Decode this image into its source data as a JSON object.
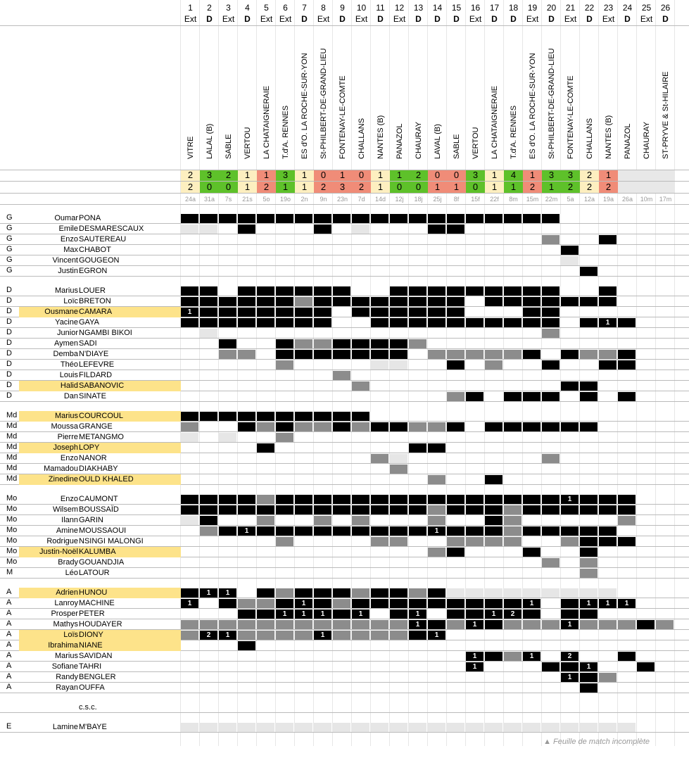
{
  "matches": [
    {
      "n": "1",
      "type": "Ext",
      "opp": "VITRE",
      "s1": "2",
      "s2": "2",
      "c1": "y",
      "c2": "y",
      "date": "24a"
    },
    {
      "n": "2",
      "type": "D",
      "opp": "LALAL (B)",
      "s1": "3",
      "s2": "0",
      "c1": "g",
      "c2": "g",
      "date": "31a"
    },
    {
      "n": "3",
      "type": "Ext",
      "opp": "SABLE",
      "s1": "2",
      "s2": "0",
      "c1": "g",
      "c2": "g",
      "date": "7s"
    },
    {
      "n": "4",
      "type": "D",
      "opp": "VERTOU",
      "s1": "1",
      "s2": "1",
      "c1": "y",
      "c2": "y",
      "date": "21s"
    },
    {
      "n": "5",
      "type": "Ext",
      "opp": "LA CHATAIGNERAIE",
      "s1": "1",
      "s2": "2",
      "c1": "r",
      "c2": "r",
      "date": "5o"
    },
    {
      "n": "6",
      "type": "Ext",
      "opp": "T.d'A. RENNES",
      "s1": "3",
      "s2": "1",
      "c1": "g",
      "c2": "g",
      "date": "19o"
    },
    {
      "n": "7",
      "type": "D",
      "opp": "ES d'O. LA ROCHE-SUR-YON",
      "s1": "1",
      "s2": "1",
      "c1": "y",
      "c2": "y",
      "date": "2n"
    },
    {
      "n": "8",
      "type": "Ext",
      "opp": "St-PHILBERT-DE-GRAND-LIEU",
      "s1": "0",
      "s2": "2",
      "c1": "r",
      "c2": "r",
      "date": "9n"
    },
    {
      "n": "9",
      "type": "D",
      "opp": "FONTENAY-LE-COMTE",
      "s1": "1",
      "s2": "3",
      "c1": "r",
      "c2": "r",
      "date": "23n"
    },
    {
      "n": "10",
      "type": "Ext",
      "opp": "CHALLANS",
      "s1": "0",
      "s2": "2",
      "c1": "r",
      "c2": "r",
      "date": "7d"
    },
    {
      "n": "11",
      "type": "D",
      "opp": "NANTES (B)",
      "s1": "1",
      "s2": "1",
      "c1": "y",
      "c2": "y",
      "date": "14d"
    },
    {
      "n": "12",
      "type": "Ext",
      "opp": "PANAZOL",
      "s1": "1",
      "s2": "0",
      "c1": "g",
      "c2": "g",
      "date": "12j"
    },
    {
      "n": "13",
      "type": "D",
      "opp": "CHAURAY",
      "s1": "2",
      "s2": "0",
      "c1": "g",
      "c2": "g",
      "date": "18j"
    },
    {
      "n": "14",
      "type": "D",
      "opp": "LAVAL (B)",
      "s1": "0",
      "s2": "1",
      "c1": "r",
      "c2": "r",
      "date": "25j"
    },
    {
      "n": "15",
      "type": "D",
      "opp": "SABLE",
      "s1": "0",
      "s2": "1",
      "c1": "r",
      "c2": "r",
      "date": "8f"
    },
    {
      "n": "16",
      "type": "Ext",
      "opp": "VERTOU",
      "s1": "3",
      "s2": "0",
      "c1": "g",
      "c2": "g",
      "date": "15f"
    },
    {
      "n": "17",
      "type": "D",
      "opp": "LA CHATAIGNERAIE",
      "s1": "1",
      "s2": "1",
      "c1": "y",
      "c2": "y",
      "date": "22f"
    },
    {
      "n": "18",
      "type": "D",
      "opp": "T.d'A. RENNES",
      "s1": "4",
      "s2": "1",
      "c1": "g",
      "c2": "g",
      "date": "8m"
    },
    {
      "n": "19",
      "type": "Ext",
      "opp": "ES d'O. LA ROCHE-SUR-YON",
      "s1": "1",
      "s2": "2",
      "c1": "r",
      "c2": "r",
      "date": "15m"
    },
    {
      "n": "20",
      "type": "D",
      "opp": "St-PHILBERT-DE-GRAND-LIEU",
      "s1": "3",
      "s2": "1",
      "c1": "g",
      "c2": "g",
      "date": "22m"
    },
    {
      "n": "21",
      "type": "Ext",
      "opp": "FONTENAY-LE-COMTE",
      "s1": "3",
      "s2": "2",
      "c1": "g",
      "c2": "g",
      "date": "5a"
    },
    {
      "n": "22",
      "type": "D",
      "opp": "CHALLANS",
      "s1": "2",
      "s2": "2",
      "c1": "y",
      "c2": "y",
      "date": "12a"
    },
    {
      "n": "23",
      "type": "Ext",
      "opp": "NANTES (B)",
      "s1": "1",
      "s2": "2",
      "c1": "r",
      "c2": "r",
      "date": "19a"
    },
    {
      "n": "24",
      "type": "D",
      "opp": "PANAZOL",
      "s1": "",
      "s2": "",
      "c1": "e",
      "c2": "e",
      "date": "26a"
    },
    {
      "n": "25",
      "type": "Ext",
      "opp": "CHAURAY",
      "s1": "",
      "s2": "",
      "c1": "e",
      "c2": "e",
      "date": "10m"
    },
    {
      "n": "26",
      "type": "D",
      "opp": "ST-PRYVE & St-HILAIRE",
      "s1": "",
      "s2": "",
      "c1": "e",
      "c2": "e",
      "date": "17m"
    }
  ],
  "colors": {
    "y": "#fdefc0",
    "g": "#5ec12a",
    "r": "#f08c78",
    "e": "#e8e8e8",
    "black": "#000000",
    "gray": "#8c8c8c",
    "light": "#e6e6e6",
    "highlight": "#fde38a"
  },
  "players": [
    {
      "pos": "G",
      "first": "Oumar",
      "last": "PONA",
      "hl": false,
      "row": "kkkkkkkkkkkkkkkkkkkk..."
    },
    {
      "pos": "G",
      "first": "Emile",
      "last": "DESMARESCAUX",
      "hl": false,
      "row": "ll.k...k.l...kk........."
    },
    {
      "pos": "G",
      "first": "Enzo",
      "last": "SAUTEREAU",
      "hl": false,
      "row": "...................g..k."
    },
    {
      "pos": "G",
      "first": "Max",
      "last": "CHABOT",
      "hl": false,
      "row": "....................k..."
    },
    {
      "pos": "G",
      "first": "Vincent",
      "last": "GOUGEON",
      "hl": false,
      "row": "....................l..."
    },
    {
      "pos": "G",
      "first": "Justin",
      "last": "EGRON",
      "hl": false,
      "row": ".....................k.."
    },
    {
      "gap": true
    },
    {
      "pos": "D",
      "first": "Marius",
      "last": "LOUER",
      "hl": false,
      "row": "kk.kkkkkk..kkkkkkkkk..k."
    },
    {
      "pos": "D",
      "first": "Loïc",
      "last": "BRETON",
      "hl": false,
      "row": "kkkkkkgkkkkkkkk.kkkkkkk."
    },
    {
      "pos": "D",
      "first": "Ousmane",
      "last": "CAMARA",
      "hl": true,
      "row": "1kkkkkkk.kkkkkk...kk...."
    },
    {
      "pos": "D",
      "first": "Yacine",
      "last": "GAYA",
      "hl": false,
      "row": "kkkkkkkk..kkkkkkkkkk.k1k."
    },
    {
      "pos": "D",
      "first": "Junior",
      "last": "NGAMBI BIKOI",
      "hl": false,
      "row": ".l.................g...."
    },
    {
      "pos": "D",
      "first": "Aymen",
      "last": "SADI",
      "hl": false,
      "row": "..k..kggkkkkg..........."
    },
    {
      "pos": "D",
      "first": "Demba",
      "last": "N'DIAYE",
      "hl": false,
      "row": "..gg.kkkkkkk.gggggk.kggk."
    },
    {
      "pos": "D",
      "first": "Théo",
      "last": "LEFEVRE",
      "hl": false,
      "row": ".....g....ll..k.g..k..kk."
    },
    {
      "pos": "D",
      "first": "Louis",
      "last": "FILDARD",
      "hl": false,
      "row": "........g..............."
    },
    {
      "pos": "D",
      "first": "Halid",
      "last": "SABANOVIC",
      "hl": true,
      "row": ".........g..........kk.."
    },
    {
      "pos": "D",
      "first": "Dan",
      "last": "SINATE",
      "hl": false,
      "row": "..............gk.kkk.k.k"
    },
    {
      "gap": true
    },
    {
      "pos": "Md",
      "first": "Marius",
      "last": "COURCOUL",
      "hl": true,
      "row": "kkkkkkkkkk.............."
    },
    {
      "pos": "Md",
      "first": "Moussa",
      "last": "GRANGE",
      "hl": false,
      "row": "g..kgkggkgkkggk.kkkkkk.."
    },
    {
      "pos": "Md",
      "first": "Pierre",
      "last": "METANGMO",
      "hl": false,
      "row": "l.l..g.................."
    },
    {
      "pos": "Md",
      "first": "Joseph",
      "last": "LOPY",
      "hl": true,
      "row": "....k.......kk.........."
    },
    {
      "pos": "Md",
      "first": "Enzo",
      "last": "NANOR",
      "hl": false,
      "row": "..........gl.......g...."
    },
    {
      "pos": "Md",
      "first": "Mamadou",
      "last": "DIAKHABY",
      "hl": false,
      "row": "...........g............"
    },
    {
      "pos": "Md",
      "first": "Zinedine",
      "last": "OULD KHALED",
      "hl": true,
      "row": ".............g..k......."
    },
    {
      "gap": true
    },
    {
      "pos": "Mo",
      "first": "Enzo",
      "last": "CAUMONT",
      "hl": false,
      "row": "kkkkgkkkkkkkkkkkkkkk1kkk"
    },
    {
      "pos": "Mo",
      "first": "Wilsem",
      "last": "BOUSSAÏD",
      "hl": false,
      "row": "kkkkkkkkkkkkkgkkkgkkkkkk"
    },
    {
      "pos": "Mo",
      "first": "Ilann",
      "last": "GARIN",
      "hl": false,
      "row": "lk..g..g.g...g..kg.....g"
    },
    {
      "pos": "Mo",
      "first": "Amine",
      "last": "MOUSSAOUI",
      "hl": false,
      "row": ".gk1kkkkkkkkk1kkkgkkkkk."
    },
    {
      "pos": "Mo",
      "first": "Rodrigue",
      "last": "NSINGI MALONGI",
      "hl": false,
      "row": ".....g....gg..gggg..gkkk"
    },
    {
      "pos": "Mo",
      "first": "Justin-Noël",
      "last": "KALUMBA",
      "hl": true,
      "row": ".............gk...k..k.."
    },
    {
      "pos": "Mo",
      "first": "Brady",
      "last": "GOUANDJIA",
      "hl": false,
      "row": "...................g.g.."
    },
    {
      "pos": "M",
      "first": "Léo",
      "last": "LATOUR",
      "hl": false,
      "row": ".....................g.."
    },
    {
      "gap": true
    },
    {
      "pos": "A",
      "first": "Adrien",
      "last": "HUNOU",
      "hl": true,
      "row": "k11.kgkkkgkkgklllllllll."
    },
    {
      "pos": "A",
      "first": "Lanroy",
      "last": "MACHINE",
      "hl": false,
      "row": "1.kggk1kgkkkkkkkkk1.k111"
    },
    {
      "pos": "A",
      "first": "Prosper",
      "last": "PETER",
      "hl": false,
      "row": "...kk111k1.k1.kk12k.kk.."
    },
    {
      "pos": "A",
      "first": "Mathys",
      "last": "HOUDAYER",
      "hl": false,
      "row": "gggggggggggg1kg1kggg1gggkg"
    },
    {
      "pos": "A",
      "first": "Loïs",
      "last": "DIONY",
      "hl": true,
      "row": "g21gggg1ggggk1.........."
    },
    {
      "pos": "A",
      "first": "Ibrahima",
      "last": "NIANE",
      "hl": true,
      "row": "...k...................."
    },
    {
      "pos": "A",
      "first": "Marius",
      "last": "SAVIDAN",
      "hl": false,
      "row": "...............1kg1.2..k"
    },
    {
      "pos": "A",
      "first": "Sofiane",
      "last": "TAHRI",
      "hl": false,
      "row": "...............1...kk1..k"
    },
    {
      "pos": "A",
      "first": "Randy",
      "last": "BENGLER",
      "hl": false,
      "row": "....................1kg."
    },
    {
      "pos": "A",
      "first": "Rayan",
      "last": "OUFFA",
      "hl": false,
      "row": ".....................k.."
    },
    {
      "gap": true
    },
    {
      "pos": "",
      "first": "",
      "last": "c.s.c.",
      "hl": false,
      "csc": true,
      "row": ""
    },
    {
      "gap": true
    },
    {
      "pos": "E",
      "first": "Lamine",
      "last": "M'BAYE",
      "hl": false,
      "row": "llllllllllllllllllllllll"
    }
  ],
  "footnote": "▲ Feuille de match incomplète"
}
